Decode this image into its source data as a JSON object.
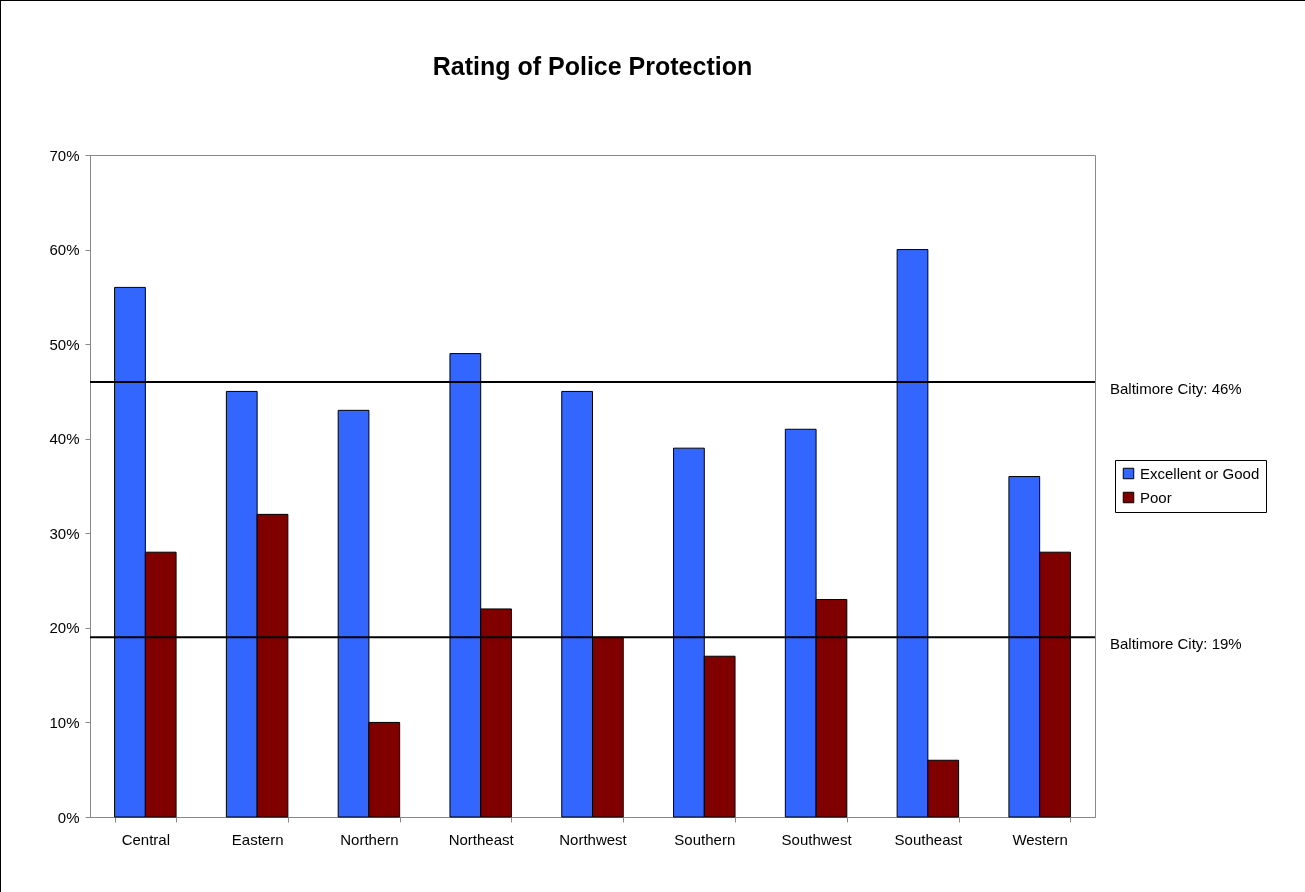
{
  "chart_data": {
    "type": "bar",
    "title": "Rating of Police Protection",
    "categories": [
      "Central",
      "Eastern",
      "Northern",
      "Northeast",
      "Northwest",
      "Southern",
      "Southwest",
      "Southeast",
      "Western"
    ],
    "series": [
      {
        "name": "Excellent or Good",
        "color": "#3366ff",
        "values": [
          56,
          45,
          43,
          49,
          45,
          39,
          41,
          60,
          36
        ]
      },
      {
        "name": "Poor",
        "color": "#800000",
        "values": [
          28,
          32,
          10,
          22,
          19,
          17,
          23,
          6,
          28
        ]
      }
    ],
    "ylim": [
      0,
      70
    ],
    "yticks": [
      {
        "value": 0,
        "label": "0%"
      },
      {
        "value": 10,
        "label": "10%"
      },
      {
        "value": 20,
        "label": "20%"
      },
      {
        "value": 30,
        "label": "30%"
      },
      {
        "value": 40,
        "label": "40%"
      },
      {
        "value": 50,
        "label": "50%"
      },
      {
        "value": 60,
        "label": "60%"
      },
      {
        "value": 70,
        "label": "70%"
      }
    ],
    "ref_lines": [
      {
        "axis": "y",
        "value": 46,
        "label": "Baltimore City: 46%",
        "color": "#000000"
      },
      {
        "axis": "y",
        "value": 19,
        "label": "Baltimore City:  19%",
        "color": "#000000"
      }
    ],
    "legend": "right",
    "grid": false
  }
}
